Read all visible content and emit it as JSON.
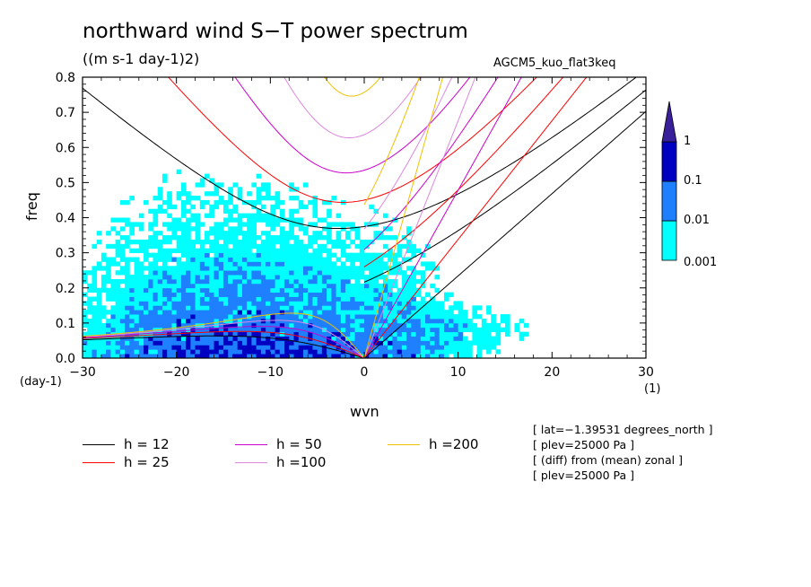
{
  "title": "northward wind S−T power spectrum",
  "subtitle": "((m s-1 day-1)2)",
  "experiment": "AGCM5_kuo_flat3keq",
  "chart_data": {
    "type": "heatmap",
    "xlabel": "wvn",
    "ylabel": "freq",
    "y_unit": "(day-1)",
    "x_unit": "(1)",
    "xlim": [
      -30,
      30
    ],
    "ylim": [
      0,
      0.8
    ],
    "x_ticks": [
      "−30",
      "−20",
      "−10",
      "0",
      "10",
      "20",
      "30"
    ],
    "x_tick_values": [
      -30,
      -20,
      -10,
      0,
      10,
      20,
      30
    ],
    "y_ticks": [
      "0.0",
      "0.1",
      "0.2",
      "0.3",
      "0.4",
      "0.5",
      "0.6",
      "0.7",
      "0.8"
    ],
    "y_tick_values": [
      0,
      0.1,
      0.2,
      0.3,
      0.4,
      0.5,
      0.6,
      0.7,
      0.8
    ],
    "colorbar": {
      "levels": [
        0.001,
        0.01,
        0.1,
        1
      ],
      "labels": [
        "0.001",
        "0.01",
        "0.1",
        "1"
      ],
      "colors": [
        "#00ffff",
        "#1e7fff",
        "#0000c0",
        "#3a1f9a"
      ]
    },
    "dispersion_curves": [
      {
        "name": "h = 12",
        "h": 12,
        "color": "#000000"
      },
      {
        "name": "h = 25",
        "h": 25,
        "color": "#ff0000"
      },
      {
        "name": "h = 50",
        "h": 50,
        "color": "#cc00cc"
      },
      {
        "name": "h =100",
        "h": 100,
        "color": "#dd88dd"
      },
      {
        "name": "h =200",
        "h": 200,
        "color": "#f0c000"
      }
    ],
    "power_regions_approx": [
      {
        "level": "0.001",
        "desc": "broad low-frequency region",
        "x_range": [
          -30,
          15
        ],
        "y_range": [
          0,
          0.45
        ]
      },
      {
        "level": "0.01",
        "desc": "core around wvn -10 to 0",
        "x_range": [
          -25,
          5
        ],
        "y_range": [
          0,
          0.33
        ]
      },
      {
        "level": "0.1",
        "desc": "isolated small patches",
        "x_range": [
          -8,
          8
        ],
        "y_range": [
          0,
          0.12
        ]
      }
    ]
  },
  "info": [
    "[ lat=−1.39531 degrees_north ]",
    "[ plev=25000 Pa ]",
    "[ (diff) from (mean) zonal ]",
    "[ plev=25000 Pa ]"
  ]
}
